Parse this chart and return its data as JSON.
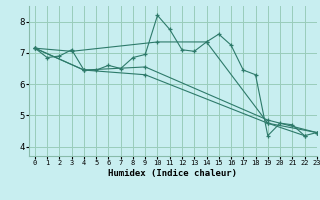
{
  "xlabel": "Humidex (Indice chaleur)",
  "background_color": "#c8eef0",
  "grid_color": "#99ccbb",
  "line_color": "#2d7a6a",
  "xlim": [
    -0.5,
    23
  ],
  "ylim": [
    3.7,
    8.5
  ],
  "yticks": [
    4,
    5,
    6,
    7,
    8
  ],
  "xticks": [
    0,
    1,
    2,
    3,
    4,
    5,
    6,
    7,
    8,
    9,
    10,
    11,
    12,
    13,
    14,
    15,
    16,
    17,
    18,
    19,
    20,
    21,
    22,
    23
  ],
  "series": [
    {
      "x": [
        0,
        1,
        2,
        3,
        4,
        5,
        6,
        7,
        8,
        9,
        10,
        11,
        12,
        13,
        14,
        15,
        16,
        17,
        18,
        19,
        20,
        21,
        22,
        23
      ],
      "y": [
        7.15,
        6.85,
        6.9,
        7.1,
        6.45,
        6.45,
        6.6,
        6.5,
        6.85,
        6.95,
        8.2,
        7.75,
        7.1,
        7.05,
        7.35,
        7.6,
        7.25,
        6.45,
        6.3,
        4.35,
        4.75,
        4.7,
        4.35,
        4.45
      ]
    },
    {
      "x": [
        0,
        3,
        10,
        14,
        19,
        22
      ],
      "y": [
        7.15,
        7.05,
        7.35,
        7.35,
        4.75,
        4.35
      ]
    },
    {
      "x": [
        0,
        4,
        9,
        19,
        23
      ],
      "y": [
        7.15,
        6.45,
        6.55,
        4.85,
        4.45
      ]
    },
    {
      "x": [
        0,
        4,
        9,
        19,
        23
      ],
      "y": [
        7.15,
        6.45,
        6.3,
        4.75,
        4.45
      ]
    }
  ]
}
